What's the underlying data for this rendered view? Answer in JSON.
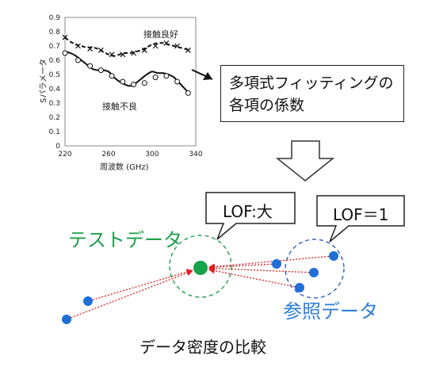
{
  "chart_data": {
    "type": "line",
    "xlabel": "周波数 (GHz)",
    "ylabel": "Sパラメータ",
    "xlim": [
      220,
      340
    ],
    "ylim": [
      0,
      0.9
    ],
    "x_ticks": [
      "220",
      "260",
      "300",
      "340"
    ],
    "y_ticks": [
      "0",
      "0.1",
      "0.2",
      "0.3",
      "0.4",
      "0.5",
      "0.6",
      "0.7",
      "0.8",
      "0.9"
    ],
    "grid": false,
    "series": [
      {
        "name": "接触良好",
        "style": "dashed-with-x-markers",
        "x": [
          220,
          225,
          230,
          235,
          240,
          245,
          250,
          255,
          260,
          265,
          270,
          275,
          280,
          285,
          290,
          295,
          300,
          305,
          310,
          315,
          320,
          325,
          330,
          335
        ],
        "y": [
          0.76,
          0.73,
          0.71,
          0.7,
          0.69,
          0.69,
          0.68,
          0.66,
          0.64,
          0.63,
          0.64,
          0.65,
          0.65,
          0.66,
          0.67,
          0.69,
          0.71,
          0.72,
          0.72,
          0.71,
          0.7,
          0.69,
          0.68,
          0.67
        ],
        "markers_x": [
          220,
          232,
          243,
          253,
          263,
          273,
          283,
          293,
          303,
          313,
          323,
          333
        ],
        "markers_y": [
          0.76,
          0.7,
          0.68,
          0.67,
          0.64,
          0.64,
          0.65,
          0.67,
          0.7,
          0.72,
          0.7,
          0.67
        ]
      },
      {
        "name": "接触不良",
        "style": "solid-with-o-markers",
        "x": [
          220,
          225,
          230,
          235,
          240,
          245,
          250,
          255,
          260,
          265,
          270,
          275,
          280,
          285,
          290,
          295,
          300,
          305,
          310,
          315,
          320,
          325,
          330,
          335
        ],
        "y": [
          0.66,
          0.65,
          0.63,
          0.6,
          0.57,
          0.54,
          0.53,
          0.53,
          0.52,
          0.48,
          0.45,
          0.43,
          0.42,
          0.44,
          0.47,
          0.5,
          0.52,
          0.51,
          0.51,
          0.5,
          0.48,
          0.44,
          0.4,
          0.36
        ],
        "markers_x": [
          220,
          232,
          243,
          253,
          263,
          273,
          283,
          293,
          303,
          313,
          323,
          333
        ],
        "markers_y": [
          0.65,
          0.6,
          0.56,
          0.53,
          0.49,
          0.45,
          0.43,
          0.44,
          0.48,
          0.49,
          0.45,
          0.37
        ]
      }
    ]
  },
  "coef_box": {
    "line1": "多項式フィッティングの",
    "line2": "各項の係数"
  },
  "callouts": {
    "lof_large": "LOF:大",
    "lof_one": "LOF＝1"
  },
  "labels": {
    "test_data": "テストデータ",
    "reference_data": "参照データ",
    "caption": "データ密度の比較"
  },
  "colors": {
    "test": "#16a34a",
    "reference": "#1f6fd6",
    "arrow": "#e02020",
    "dashed_test": "#2ea35a",
    "dashed_ref": "#3a68c8"
  },
  "scatter": {
    "test_point": [
      253,
      338
    ],
    "reference_points": [
      [
        349,
        333
      ],
      [
        421,
        323
      ],
      [
        396,
        344
      ],
      [
        378,
        363
      ],
      [
        111,
        380
      ],
      [
        84,
        403
      ]
    ]
  }
}
